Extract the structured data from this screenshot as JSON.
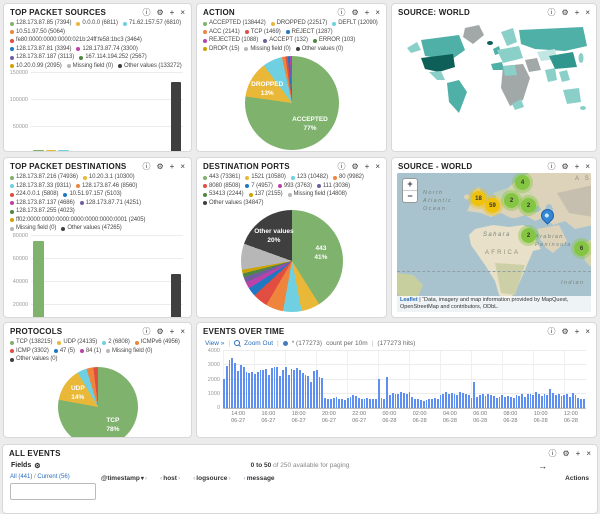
{
  "colors": {
    "palette": [
      "#7EB26D",
      "#EAB839",
      "#6ED0E0",
      "#EF843C",
      "#E24D42",
      "#1F78C1",
      "#BA43A9",
      "#705DA0",
      "#508642",
      "#CCA300",
      "#B7B7B7",
      "#3F3F3F"
    ],
    "vars": {
      "ocean": "#a9c3ce",
      "land": "#ddd3ba",
      "sahara": "#e8e0c8",
      "histbar": "#5f8ff0",
      "link": "#2a6ebb",
      "panelborder": "#d8d8d8",
      "w-dark": "#0d5f58",
      "w-middark": "#2f978e",
      "w-mid": "#4fb0a7",
      "w-light": "#8ad0c8",
      "w-pale": "#c2e7e2",
      "w-nodata": "#a2a7a7"
    }
  },
  "icons": {
    "info": "ⓘ",
    "settings": "⚙",
    "move": "+",
    "close": "×",
    "arrow_right": "→",
    "sort_desc": "▾",
    "chev_left": "‹",
    "chev_right": "›"
  },
  "panels": {
    "sources": {
      "title": "TOP PACKET SOURCES",
      "legend": [
        {
          "t": "128.173.87.85",
          "v": 7394,
          "c": 0
        },
        {
          "t": "0.0.0.0",
          "v": 6811,
          "c": 1
        },
        {
          "t": "71.62.157.57",
          "v": 6810,
          "c": 2
        },
        {
          "t": "10.51.97.50",
          "v": 5064,
          "c": 3
        },
        {
          "t": "fe80:0000:0000:0000:021b:24ff:fe58:1bc3",
          "v": 3464,
          "c": 4
        },
        {
          "t": "128.173.87.81",
          "v": 3394,
          "c": 5
        },
        {
          "t": "128.173.87.74",
          "v": 3300,
          "c": 6
        },
        {
          "t": "128.173.87.187",
          "v": 3113,
          "c": 7
        },
        {
          "t": "167.114.194.252",
          "v": 2567,
          "c": 8
        },
        {
          "t": "10.20.0.99",
          "v": 2095,
          "c": 9
        },
        {
          "t": "Missing field",
          "v": 0,
          "c": 10
        },
        {
          "t": "Other values",
          "v": 133272,
          "c": 11
        }
      ],
      "chart": {
        "type": "bar",
        "ymax": 150000,
        "yticks": [
          0,
          50000,
          100000,
          150000
        ]
      }
    },
    "action": {
      "title": "ACTION",
      "legend": [
        {
          "t": "ACCEPTED",
          "v": 138442,
          "c": 0
        },
        {
          "t": "DROPPED",
          "v": 22517,
          "c": 1
        },
        {
          "t": "DEFLT",
          "v": 12090,
          "c": 2
        },
        {
          "t": "ACC",
          "v": 2141,
          "c": 3
        },
        {
          "t": "TCP",
          "v": 1469,
          "c": 4
        },
        {
          "t": "REJECT",
          "v": 1287,
          "c": 5
        },
        {
          "t": "REJECTED",
          "v": 1088,
          "c": 6
        },
        {
          "t": "ACCEPT",
          "v": 132,
          "c": 7
        },
        {
          "t": "ERROR",
          "v": 103,
          "c": 8
        },
        {
          "t": "DROPt",
          "v": 15,
          "c": 9
        },
        {
          "t": "Missing field",
          "v": 0,
          "c": 10
        },
        {
          "t": "Other values",
          "v": 0,
          "c": 11
        }
      ],
      "chart": {
        "type": "pie",
        "labels": [
          {
            "name": "ACCEPTED",
            "pct": "77%"
          },
          {
            "name": "DROPPED",
            "pct": "13%"
          }
        ]
      }
    },
    "source_world": {
      "title": "SOURCE: WORLD"
    },
    "destinations": {
      "title": "TOP PACKET DESTINATIONS",
      "legend": [
        {
          "t": "128.173.87.216",
          "v": 74936,
          "c": 0
        },
        {
          "t": "10.20.3.1",
          "v": 10300,
          "c": 1
        },
        {
          "t": "128.173.87.33",
          "v": 9311,
          "c": 2
        },
        {
          "t": "128.173.87.46",
          "v": 8560,
          "c": 3
        },
        {
          "t": "224.0.0.1",
          "v": 5808,
          "c": 4
        },
        {
          "t": "10.51.97.157",
          "v": 5103,
          "c": 5
        },
        {
          "t": "128.173.87.137",
          "v": 4686,
          "c": 6
        },
        {
          "t": "128.173.87.71",
          "v": 4251,
          "c": 7
        },
        {
          "t": "128.173.87.255",
          "v": 4023,
          "c": 8
        },
        {
          "t": "ff02:0000:0000:0000:0000:0000:0000:0001",
          "v": 2405,
          "c": 9
        },
        {
          "t": "Missing field",
          "v": 0,
          "c": 10
        },
        {
          "t": "Other values",
          "v": 47265,
          "c": 11
        }
      ],
      "chart": {
        "type": "bar",
        "ymax": 80000,
        "yticks": [
          0,
          20000,
          40000,
          60000,
          80000
        ]
      }
    },
    "ports": {
      "title": "DESTINATION PORTS",
      "legend": [
        {
          "t": "443",
          "v": 73361,
          "c": 0
        },
        {
          "t": "1521",
          "v": 10580,
          "c": 1
        },
        {
          "t": "123",
          "v": 10482,
          "c": 2
        },
        {
          "t": "80",
          "v": 9982,
          "c": 3
        },
        {
          "t": "8080",
          "v": 8508,
          "c": 4
        },
        {
          "t": "7",
          "v": 4957,
          "c": 5
        },
        {
          "t": "993",
          "v": 3763,
          "c": 6
        },
        {
          "t": "111",
          "v": 3036,
          "c": 7
        },
        {
          "t": "53413",
          "v": 2244,
          "c": 8
        },
        {
          "t": "137",
          "v": 2155,
          "c": 9
        },
        {
          "t": "Missing field",
          "v": 14808,
          "c": 10
        },
        {
          "t": "Other values",
          "v": 34847,
          "c": 11
        }
      ],
      "chart": {
        "type": "pie",
        "labels": [
          {
            "name": "443",
            "pct": "41%"
          },
          {
            "name": "Other values",
            "pct": "20%"
          }
        ]
      }
    },
    "source_world_map": {
      "title": "SOURCE - WORLD",
      "zoom_in": "+",
      "zoom_out": "−",
      "markers": {
        "m4": "4",
        "m18": "18",
        "m59": "59",
        "m2a": "2",
        "m2b": "2",
        "m2c": "2",
        "m6": "6"
      },
      "labels": {
        "l1": "North",
        "l2": "Atlantic",
        "l3": "Ocean",
        "sahara": "Sahara",
        "africa": "AFRICA",
        "ar1": "Arabian",
        "ar2": "Peninsula",
        "indian": "Indian",
        "asia": "A S"
      },
      "attribution": {
        "leaflet": "Leaflet",
        "text": "| “Data, imagery and map information provided by MapQuest, OpenStreetMap and contributors, ODbL."
      }
    },
    "protocols": {
      "title": "PROTOCOLS",
      "legend": [
        {
          "t": "TCP",
          "v": 138215,
          "c": 0
        },
        {
          "t": "UDP",
          "v": 24135,
          "c": 1
        },
        {
          "t": "2",
          "v": 6808,
          "c": 2
        },
        {
          "t": "ICMPv6",
          "v": 4956,
          "c": 3
        },
        {
          "t": "ICMP",
          "v": 3302,
          "c": 4
        },
        {
          "t": "47",
          "v": 5,
          "c": 5
        },
        {
          "t": "84",
          "v": 1,
          "c": 6
        },
        {
          "t": "Missing field",
          "v": 0,
          "c": 10
        },
        {
          "t": "Other values",
          "v": 0,
          "c": 11
        }
      ],
      "chart": {
        "type": "pie",
        "labels": [
          {
            "name": "TCP",
            "pct": "78%"
          },
          {
            "name": "UDP",
            "pct": "14%"
          }
        ]
      }
    },
    "events": {
      "title": "EVENTS OVER TIME",
      "toolbar": {
        "view": "View »",
        "zoom_out": "Zoom Out",
        "series": "* (177273)",
        "per": "count per 10m",
        "hits": "(177273 hits)"
      },
      "chart": {
        "type": "histogram",
        "ymax": 4000,
        "yticks": [
          0,
          1000,
          2000,
          3000,
          4000
        ],
        "values": [
          2050,
          2950,
          3400,
          3500,
          3150,
          2600,
          3050,
          2850,
          2500,
          2450,
          2500,
          2400,
          2550,
          2650,
          2700,
          2750,
          2350,
          2800,
          2850,
          2900,
          2250,
          2700,
          2900,
          2300,
          2750,
          2700,
          2800,
          2650,
          2450,
          2350,
          2250,
          1850,
          2600,
          2650,
          2150,
          2100,
          700,
          650,
          600,
          700,
          750,
          650,
          600,
          550,
          700,
          800,
          900,
          850,
          700,
          650,
          600,
          700,
          650,
          600,
          650,
          2050,
          700,
          650,
          2200,
          900,
          1050,
          1000,
          950,
          1100,
          1050,
          1000,
          1150,
          750,
          650,
          600,
          550,
          500,
          550,
          600,
          650,
          700,
          600,
          900,
          1000,
          1100,
          950,
          1050,
          1000,
          900,
          1100,
          1050,
          950,
          900,
          700,
          1800,
          800,
          900,
          1000,
          850,
          950,
          900,
          850,
          700,
          800,
          900,
          750,
          850,
          800,
          700,
          900,
          850,
          950,
          800,
          1000,
          950,
          900,
          1100,
          1000,
          850,
          950,
          900,
          1300,
          1050,
          900,
          1000,
          850,
          900,
          950,
          800,
          1050,
          900,
          700,
          650,
          600
        ],
        "xticks": [
          {
            "t": "14:00",
            "d": "06-27"
          },
          {
            "t": "16:00",
            "d": "06-27"
          },
          {
            "t": "18:00",
            "d": "06-27"
          },
          {
            "t": "20:00",
            "d": "06-27"
          },
          {
            "t": "22:00",
            "d": "06-27"
          },
          {
            "t": "00:00",
            "d": "06-28"
          },
          {
            "t": "02:00",
            "d": "06-28"
          },
          {
            "t": "04:00",
            "d": "06-28"
          },
          {
            "t": "06:00",
            "d": "06-28"
          },
          {
            "t": "08:00",
            "d": "06-28"
          },
          {
            "t": "10:00",
            "d": "06-28"
          },
          {
            "t": "12:00",
            "d": "06-28"
          }
        ]
      }
    },
    "all_events": {
      "title": "ALL EVENTS",
      "fields_label": "Fields",
      "paging_bold": "0 to 50",
      "paging_rest": " of 250 available for paging",
      "links": {
        "all": "All (441)",
        "sep": " / ",
        "current": "Current (56)"
      },
      "columns": [
        "@timestamp",
        "host",
        "logsource",
        "message"
      ],
      "actions_label": "Actions"
    }
  }
}
